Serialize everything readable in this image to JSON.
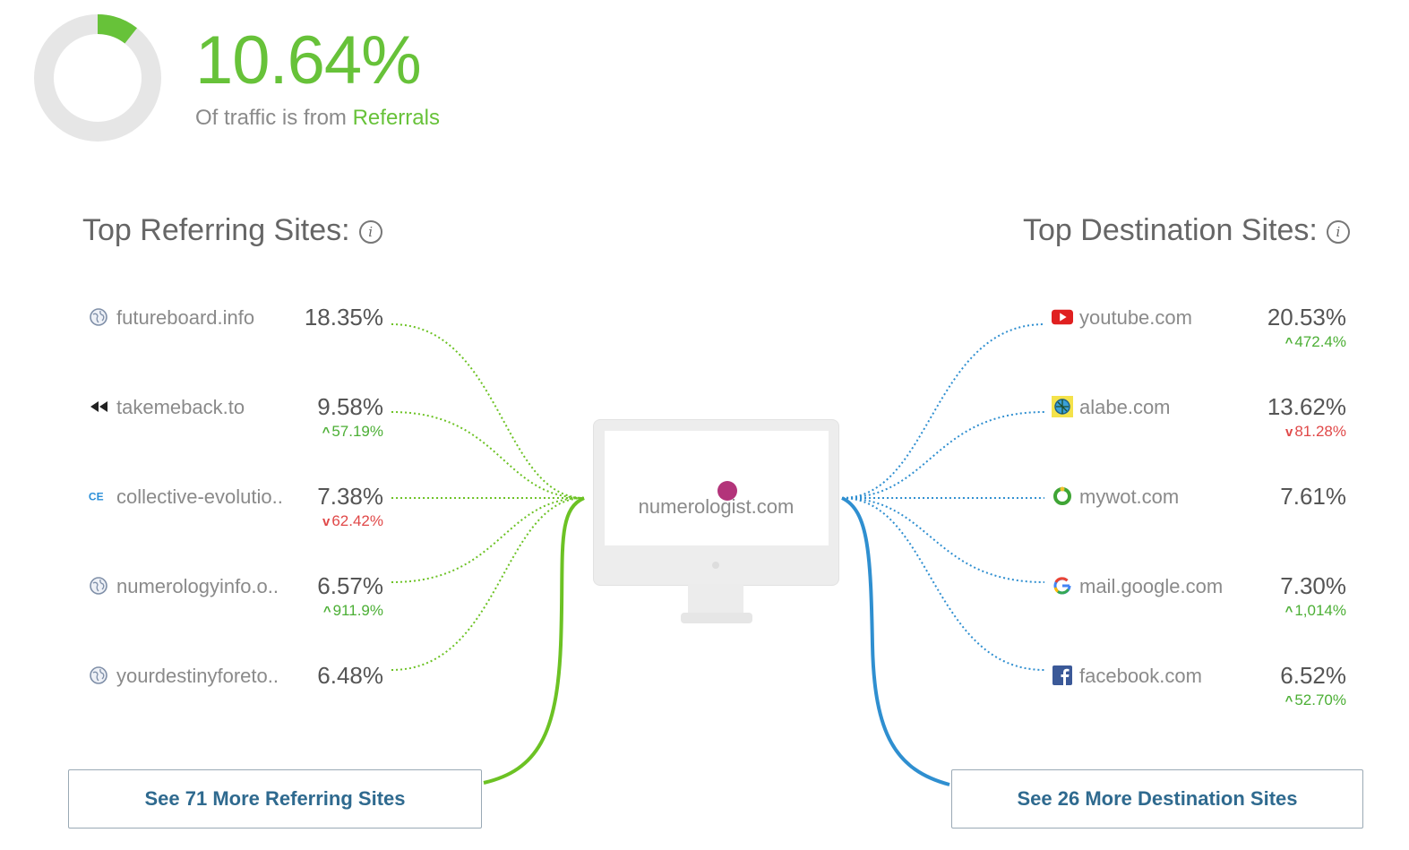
{
  "summary": {
    "percent": "10.64%",
    "subtitle_prefix": "Of traffic is from",
    "subtitle_accent": "Referrals",
    "donut_fraction": 0.1064,
    "accent_color": "#67c239"
  },
  "referring": {
    "title": "Top Referring Sites:",
    "sites": [
      {
        "name": "futureboard.info",
        "pct": "18.35%",
        "change": "",
        "dir": "",
        "icon": "globe-icon"
      },
      {
        "name": "takemeback.to",
        "pct": "9.58%",
        "change": "57.19%",
        "dir": "up",
        "icon": "rewind-icon"
      },
      {
        "name": "collective-evolutio..",
        "pct": "7.38%",
        "change": "62.42%",
        "dir": "down",
        "icon": "ce-logo-icon"
      },
      {
        "name": "numerologyinfo.o..",
        "pct": "6.57%",
        "change": "911.9%",
        "dir": "up",
        "icon": "globe-icon"
      },
      {
        "name": "yourdestinyforeto..",
        "pct": "6.48%",
        "change": "",
        "dir": "",
        "icon": "globe-icon"
      }
    ],
    "more_label": "See 71 More Referring Sites",
    "color": "#6cc224"
  },
  "destination": {
    "title": "Top Destination Sites:",
    "sites": [
      {
        "name": "youtube.com",
        "pct": "20.53%",
        "change": "472.4%",
        "dir": "up",
        "icon": "youtube-icon"
      },
      {
        "name": "alabe.com",
        "pct": "13.62%",
        "change": "81.28%",
        "dir": "down",
        "icon": "alabe-icon"
      },
      {
        "name": "mywot.com",
        "pct": "7.61%",
        "change": "",
        "dir": "",
        "icon": "mywot-icon"
      },
      {
        "name": "mail.google.com",
        "pct": "7.30%",
        "change": "1,014%",
        "dir": "up",
        "icon": "google-icon"
      },
      {
        "name": "facebook.com",
        "pct": "6.52%",
        "change": "52.70%",
        "dir": "up",
        "icon": "facebook-icon"
      }
    ],
    "more_label": "See 26 More Destination Sites",
    "color": "#2f8fd0"
  },
  "center": {
    "domain": "numerologist.com"
  }
}
